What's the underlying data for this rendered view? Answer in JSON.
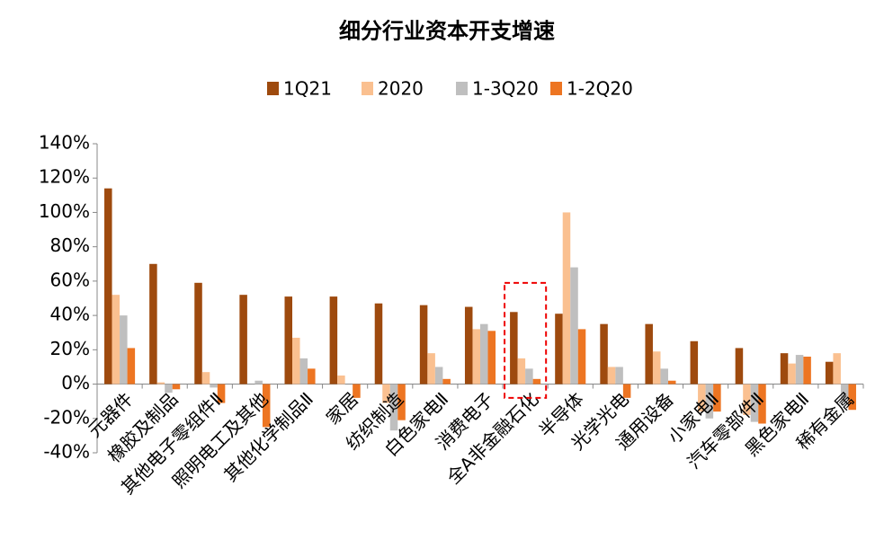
{
  "chart_data": {
    "type": "bar",
    "title": "细分行业资本开支增速",
    "categories": [
      "元器件",
      "橡胶及制品",
      "其他电子零组件Ⅱ",
      "照明电工及其他",
      "其他化学制品Ⅱ",
      "家居",
      "纺织制造",
      "白色家电Ⅱ",
      "消费电子",
      "全A非金融石化",
      "半导体",
      "光学光电",
      "通用设备",
      "小家电Ⅱ",
      "汽车零部件Ⅱ",
      "黑色家电Ⅱ",
      "稀有金属"
    ],
    "series": [
      {
        "name": "1Q21",
        "color": "#9e4a0e",
        "values": [
          114,
          70,
          59,
          52,
          51,
          51,
          47,
          46,
          45,
          42,
          41,
          35,
          35,
          25,
          21,
          18,
          13
        ]
      },
      {
        "name": "2020",
        "color": "#fac090",
        "values": [
          52,
          1,
          7,
          0,
          27,
          5,
          -11,
          18,
          32,
          15,
          100,
          10,
          19,
          -16,
          -18,
          12,
          18
        ]
      },
      {
        "name": "1-3Q20",
        "color": "#bfbfbf",
        "values": [
          40,
          -5,
          -2,
          2,
          15,
          0,
          -27,
          10,
          35,
          9,
          68,
          10,
          9,
          -20,
          -22,
          17,
          -9
        ]
      },
      {
        "name": "1-2Q20",
        "color": "#ed7522",
        "values": [
          21,
          -3,
          -11,
          -25,
          9,
          -8,
          -21,
          3,
          31,
          3,
          32,
          -8,
          2,
          -16,
          -23,
          16,
          -15
        ]
      }
    ],
    "ylim": [
      -40,
      140
    ],
    "yticks": [
      {
        "value": -40,
        "label": "-40%"
      },
      {
        "value": -20,
        "label": "-20%"
      },
      {
        "value": 0,
        "label": "0%"
      },
      {
        "value": 20,
        "label": "20%"
      },
      {
        "value": 40,
        "label": "40%"
      },
      {
        "value": 60,
        "label": "60%"
      },
      {
        "value": 80,
        "label": "80%"
      },
      {
        "value": 100,
        "label": "100%"
      },
      {
        "value": 120,
        "label": "120%"
      },
      {
        "value": 140,
        "label": "140%"
      }
    ],
    "legend": "top",
    "grid": false
  }
}
